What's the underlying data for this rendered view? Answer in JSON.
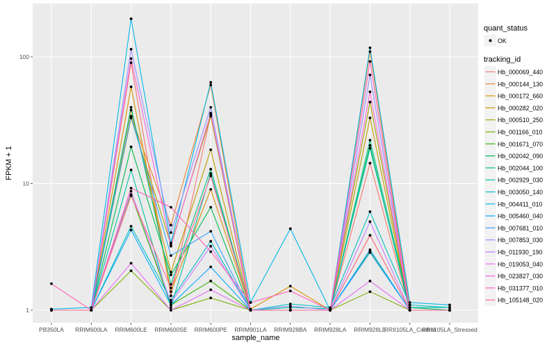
{
  "chart_data": {
    "type": "line",
    "title": "",
    "xlabel": "sample_name",
    "ylabel": "FPKM + 1",
    "yscale": "log10",
    "ylim": [
      0.9,
      250
    ],
    "yticks": [
      1,
      10,
      100
    ],
    "ytick_labels": [
      "1",
      "10",
      "100"
    ],
    "grid": true,
    "categories": [
      "PB350LA",
      "RRIM600LA",
      "RRIM600LE",
      "RRIM600SE",
      "RRIM600PE",
      "RRIM901LA",
      "RRIM928BA",
      "RRIM928LA",
      "RRIM928LE",
      "RRII105LA_Control",
      "RRII105LA_Stressed"
    ],
    "x_tick_labels": [
      "PB350LA",
      "RRIM600LA",
      "RRIM600LE",
      "RRIM600SE",
      "RRIM600PE",
      "RRIM901LA",
      "RRIM928BA",
      "RRIM928LA",
      "RRIM928LE",
      "RRII105LA_Control",
      "RRII105LA_Stressed"
    ],
    "legend": {
      "position": "right",
      "shape_title": "quant_status",
      "shape_entries": [
        "OK"
      ],
      "color_title": "tracking_id"
    },
    "series": [
      {
        "name": "Hb_000069_440",
        "color": "#F8766D",
        "values": [
          1.0,
          1.0,
          90,
          1.3,
          35,
          1.0,
          1.0,
          1.0,
          14.5,
          1.0,
          1.0
        ]
      },
      {
        "name": "Hb_000144_130",
        "color": "#EA8331",
        "values": [
          1.0,
          1.0,
          34,
          4.7,
          60,
          1.0,
          1.0,
          1.0,
          110,
          1.05,
          1.0
        ]
      },
      {
        "name": "Hb_000172_660",
        "color": "#D89000",
        "values": [
          1.0,
          1.0,
          58,
          1.4,
          9.0,
          1.02,
          1.55,
          1.0,
          3.9,
          1.0,
          1.0
        ]
      },
      {
        "name": "Hb_000282_020",
        "color": "#C09B00",
        "values": [
          1.0,
          1.0,
          38,
          2.0,
          18.5,
          1.0,
          1.0,
          1.0,
          33,
          1.0,
          1.0
        ]
      },
      {
        "name": "Hb_000510_250",
        "color": "#A3A500",
        "values": [
          1.0,
          1.0,
          33,
          3.3,
          34,
          1.0,
          1.0,
          1.0,
          44,
          1.0,
          1.0
        ]
      },
      {
        "name": "Hb_001166_010",
        "color": "#7CAE00",
        "values": [
          1.0,
          1.0,
          2.05,
          1.0,
          1.25,
          1.0,
          1.0,
          1.0,
          1.4,
          1.0,
          1.0
        ]
      },
      {
        "name": "Hb_001671_070",
        "color": "#39B600",
        "values": [
          1.0,
          1.0,
          8.2,
          1.1,
          1.7,
          1.0,
          1.0,
          1.0,
          2.9,
          1.0,
          1.0
        ]
      },
      {
        "name": "Hb_002042_090",
        "color": "#00BB4E",
        "values": [
          1.0,
          1.0,
          19.5,
          1.9,
          6.5,
          1.0,
          1.0,
          1.0,
          20,
          1.0,
          1.0
        ]
      },
      {
        "name": "Hb_002044_100",
        "color": "#00BF7D",
        "values": [
          1.0,
          1.0,
          40,
          1.6,
          13,
          1.0,
          1.0,
          1.0,
          22,
          1.05,
          1.0
        ]
      },
      {
        "name": "Hb_002929_030",
        "color": "#00C1A3",
        "values": [
          1.0,
          1.0,
          12.8,
          1.05,
          12,
          1.0,
          1.05,
          1.03,
          19,
          1.05,
          1.05
        ]
      },
      {
        "name": "Hb_003050_140",
        "color": "#00BFC4",
        "values": [
          1.0,
          1.0,
          4.6,
          1.2,
          3.5,
          1.0,
          1.12,
          1.05,
          6.0,
          1.1,
          1.05
        ]
      },
      {
        "name": "Hb_004411_010",
        "color": "#00B8E7",
        "values": [
          1.02,
          1.05,
          200,
          3.4,
          63,
          1.15,
          4.4,
          1.0,
          118,
          1.15,
          1.1
        ]
      },
      {
        "name": "Hb_005460_040",
        "color": "#00A9FF",
        "values": [
          1.0,
          1.0,
          4.3,
          1.1,
          2.2,
          1.0,
          1.0,
          1.0,
          3.0,
          1.0,
          1.0
        ]
      },
      {
        "name": "Hb_007681_010",
        "color": "#35A2FF",
        "values": [
          1.0,
          1.0,
          34,
          2.7,
          4.2,
          1.0,
          1.0,
          1.0,
          2.85,
          1.0,
          1.0
        ]
      },
      {
        "name": "Hb_007853_030",
        "color": "#9590FF",
        "values": [
          1.0,
          1.0,
          115,
          4.1,
          40,
          1.0,
          1.08,
          1.0,
          72,
          1.0,
          1.0
        ]
      },
      {
        "name": "Hb_011930_190",
        "color": "#C77CFF",
        "values": [
          1.0,
          1.0,
          8.7,
          1.15,
          3.2,
          1.0,
          1.0,
          1.0,
          5.0,
          1.0,
          1.0
        ]
      },
      {
        "name": "Hb_019053_040",
        "color": "#E76BF3",
        "values": [
          1.0,
          1.0,
          2.35,
          1.0,
          1.45,
          1.0,
          1.0,
          1.0,
          1.7,
          1.0,
          1.0
        ]
      },
      {
        "name": "Hb_023827_030",
        "color": "#FA62DB",
        "values": [
          1.0,
          1.0,
          97,
          3.2,
          36,
          1.0,
          1.0,
          1.0,
          53,
          1.0,
          1.0
        ]
      },
      {
        "name": "Hb_031377_010",
        "color": "#FF62BC",
        "values": [
          1.62,
          1.0,
          9.2,
          6.5,
          2.9,
          1.15,
          1.42,
          1.0,
          92,
          1.0,
          1.0
        ]
      },
      {
        "name": "Hb_105148_020",
        "color": "#FF6C91",
        "values": [
          1.0,
          1.0,
          8.0,
          1.5,
          11.5,
          1.0,
          1.0,
          1.0,
          3.9,
          1.0,
          1.0
        ]
      }
    ]
  }
}
